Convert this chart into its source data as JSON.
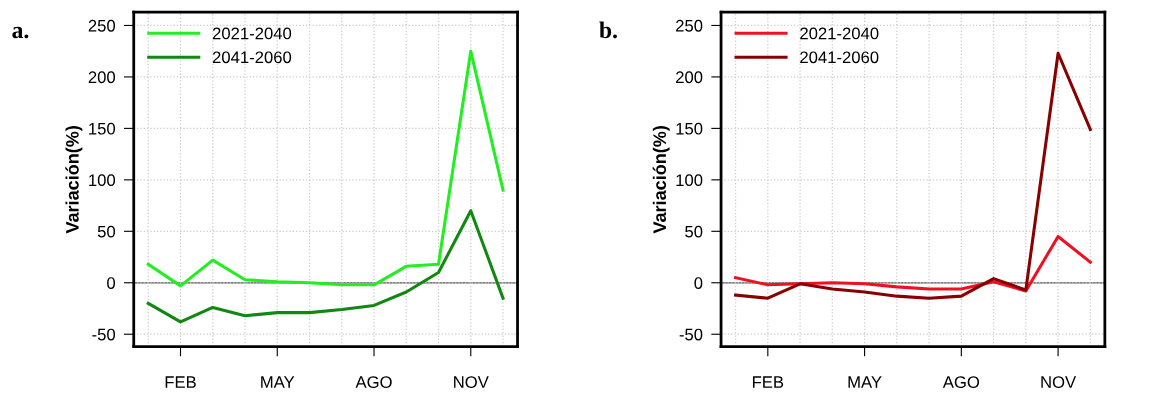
{
  "chart_data": [
    {
      "type": "line",
      "ylabel": "Variación(%)",
      "annotations": [
        "a."
      ],
      "categories": [
        null,
        "FEB",
        null,
        null,
        "MAY",
        null,
        null,
        "AGO",
        null,
        null,
        "NOV",
        null
      ],
      "series": [
        {
          "name": "2021-2040",
          "color": "#22ee22",
          "values": [
            18,
            -3,
            22,
            3,
            1,
            0,
            -2,
            -2,
            16,
            18,
            225,
            90
          ]
        },
        {
          "name": "2041-2060",
          "color": "#118811",
          "values": [
            -20,
            -38,
            -24,
            -32,
            -29,
            -29,
            -26,
            -22,
            -9,
            10,
            70,
            -15
          ]
        }
      ],
      "ylim": [
        -62,
        263
      ],
      "yticks": [
        -50,
        0,
        50,
        100,
        150,
        200,
        250
      ],
      "grid": true,
      "legend": "top left",
      "marker": "none",
      "line_style": "solid",
      "ref_lines": [
        {
          "axis": "y",
          "value": 0,
          "color": "#555555"
        }
      ]
    },
    {
      "type": "line",
      "ylabel": "Variación(%)",
      "annotations": [
        "b."
      ],
      "categories": [
        null,
        "FEB",
        null,
        null,
        "MAY",
        null,
        null,
        "AGO",
        null,
        null,
        "NOV",
        null
      ],
      "series": [
        {
          "name": "2021-2040",
          "color": "#ee1122",
          "values": [
            5,
            -2,
            -1,
            0,
            -1,
            -4,
            -6,
            -6,
            1,
            -8,
            45,
            20
          ]
        },
        {
          "name": "2041-2060",
          "color": "#880000",
          "values": [
            -12,
            -15,
            -1,
            -6,
            -9,
            -13,
            -15,
            -13,
            4,
            -7,
            223,
            149
          ]
        }
      ],
      "ylim": [
        -62,
        263
      ],
      "yticks": [
        -50,
        0,
        50,
        100,
        150,
        200,
        250
      ],
      "grid": true,
      "legend": "top left",
      "marker": "none",
      "line_style": "solid",
      "ref_lines": [
        {
          "axis": "y",
          "value": 0,
          "color": "#555555"
        }
      ]
    }
  ]
}
